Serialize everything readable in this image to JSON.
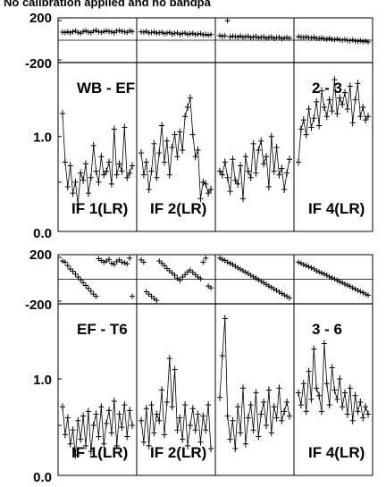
{
  "title": "No calibration applied and no bandpa",
  "colors": {
    "line": "#000000",
    "background": "#ffffff"
  },
  "chart_data": {
    "type": "line",
    "panel_groups": [
      {
        "baseline": "WB - EF",
        "baseline_index": "2 - 3",
        "phase_ticks": [
          "200",
          "-200"
        ],
        "phase_ylim": [
          -200,
          200
        ],
        "amp_ticks": [
          "1.0",
          "0.0"
        ],
        "amp_ylim": [
          0,
          1.75
        ],
        "if_labels": [
          "IF 1(LR)",
          "IF 2(LR)",
          "",
          "IF 4(LR)"
        ],
        "phase": [
          [
            78,
            74,
            81,
            72,
            83,
            90,
            76,
            69,
            85,
            92,
            79,
            74,
            88,
            95,
            82,
            77,
            84,
            91,
            86,
            80,
            73,
            89,
            94,
            87,
            81,
            76,
            92,
            85
          ],
          [
            82,
            78,
            86,
            71,
            75,
            80,
            68,
            73,
            77,
            64,
            70,
            76,
            61,
            67,
            72,
            58,
            65,
            70,
            56,
            62,
            67,
            54,
            60,
            64,
            52,
            57,
            49,
            55
          ],
          [
            45,
            38,
            42,
            190,
            33,
            40,
            36,
            30,
            41,
            27,
            34,
            38,
            25,
            31,
            36,
            22,
            29,
            33,
            19,
            26,
            31,
            17,
            24,
            28,
            15,
            22,
            26,
            20
          ],
          [
            35,
            30,
            27,
            33,
            25,
            22,
            28,
            19,
            16,
            23,
            14,
            11,
            18,
            9,
            6,
            13,
            4,
            1,
            8,
            -2,
            -5,
            3,
            -8,
            -11,
            -4,
            -14,
            -9,
            -17
          ]
        ],
        "amp": [
          [
            1.25,
            0.72,
            0.45,
            0.68,
            0.38,
            0.5,
            0.26,
            0.6,
            0.52,
            0.7,
            0.38,
            0.55,
            0.9,
            0.62,
            0.5,
            0.78,
            0.58,
            0.62,
            0.72,
            0.48,
            1.08,
            0.58,
            0.7,
            0.62,
            1.1,
            0.55,
            0.6,
            0.68
          ],
          [
            0.82,
            0.58,
            0.72,
            0.42,
            0.62,
            0.92,
            0.55,
            0.82,
            1.12,
            0.72,
            0.95,
            0.58,
            0.88,
            1.02,
            0.78,
            1.05,
            0.85,
            1.22,
            1.32,
            1.42,
            1.02,
            0.78,
            0.85,
            0.32,
            0.5,
            0.48,
            0.38,
            0.42
          ],
          [
            0.62,
            0.58,
            0.72,
            0.55,
            0.4,
            0.75,
            0.52,
            0.48,
            0.68,
            0.32,
            0.78,
            0.62,
            0.55,
            0.92,
            0.6,
            0.85,
            0.95,
            0.7,
            0.78,
            0.45,
            1.0,
            0.62,
            0.88,
            0.58,
            0.65,
            0.42,
            0.6,
            0.75
          ],
          [
            0.72,
            1.08,
            1.18,
            1.02,
            1.3,
            1.1,
            1.2,
            1.38,
            1.12,
            1.5,
            1.32,
            1.22,
            1.4,
            1.28,
            1.62,
            1.25,
            1.42,
            1.35,
            1.48,
            1.3,
            1.55,
            1.15,
            1.4,
            1.58,
            1.22,
            1.32,
            1.18,
            1.22
          ]
        ]
      },
      {
        "baseline": "EF - T6",
        "baseline_index": "3 - 6",
        "phase_ticks": [
          "200",
          "-200"
        ],
        "phase_ylim": [
          -200,
          200
        ],
        "amp_ticks": [
          "1.0",
          "0.0"
        ],
        "amp_ylim": [
          0,
          1.75
        ],
        "if_labels": [
          "IF 1(LR)",
          "IF 2(LR)",
          "",
          "IF 4(LR)"
        ],
        "phase": [
          [
            160,
            150,
            120,
            90,
            70,
            45,
            20,
            -5,
            -30,
            -55,
            -80,
            -105,
            -130,
            -150,
            180,
            165,
            150,
            160,
            175,
            140,
            130,
            155,
            170,
            150,
            145,
            135,
            185,
            -150
          ],
          [
            170,
            150,
            -110,
            -130,
            -150,
            -170,
            -185,
            160,
            140,
            120,
            95,
            75,
            55,
            35,
            10,
            -10,
            20,
            40,
            65,
            80,
            60,
            40,
            20,
            5,
            150,
            185,
            -60,
            -75
          ],
          [
            185,
            175,
            165,
            150,
            140,
            128,
            115,
            100,
            88,
            75,
            62,
            50,
            35,
            22,
            10,
            -5,
            -18,
            -30,
            -45,
            -60,
            -72,
            -85,
            -98,
            -112,
            -125,
            -138,
            -150,
            -165
          ],
          [
            150,
            140,
            128,
            120,
            110,
            100,
            90,
            75,
            65,
            55,
            45,
            35,
            22,
            12,
            2,
            -10,
            -22,
            -30,
            -42,
            -52,
            -62,
            -75,
            -85,
            -98,
            -108,
            -118,
            -130,
            -140
          ]
        ],
        "amp": [
          [
            0.7,
            0.4,
            0.58,
            0.3,
            0.45,
            0.18,
            0.55,
            0.35,
            0.6,
            0.28,
            0.65,
            0.22,
            0.5,
            0.62,
            0.38,
            0.7,
            0.3,
            0.52,
            0.66,
            0.42,
            0.76,
            0.28,
            0.62,
            0.48,
            0.72,
            0.38,
            0.66,
            0.5
          ],
          [
            0.55,
            0.32,
            0.68,
            0.28,
            0.72,
            0.42,
            0.62,
            0.55,
            0.88,
            0.4,
            0.75,
            1.22,
            0.7,
            1.1,
            0.45,
            0.58,
            0.35,
            0.72,
            0.28,
            0.5,
            0.68,
            0.45,
            0.62,
            0.32,
            0.6,
            0.45,
            0.72,
            0.25
          ],
          [
            0.8,
            1.25,
            1.65,
            0.6,
            0.35,
            0.55,
            0.25,
            0.7,
            0.42,
            0.9,
            0.3,
            0.58,
            0.72,
            0.45,
            0.85,
            0.38,
            0.62,
            0.75,
            0.5,
            0.88,
            0.42,
            0.7,
            0.58,
            0.9,
            0.55,
            0.65,
            0.75,
            0.6
          ],
          [
            0.85,
            0.72,
            0.95,
            0.65,
            1.08,
            0.78,
            1.32,
            0.9,
            0.82,
            0.65,
            1.38,
            0.95,
            0.72,
            1.12,
            0.88,
            0.78,
            1.0,
            0.7,
            0.85,
            0.62,
            0.9,
            0.55,
            0.82,
            0.65,
            0.75,
            0.58,
            0.7,
            0.62
          ]
        ]
      }
    ]
  }
}
